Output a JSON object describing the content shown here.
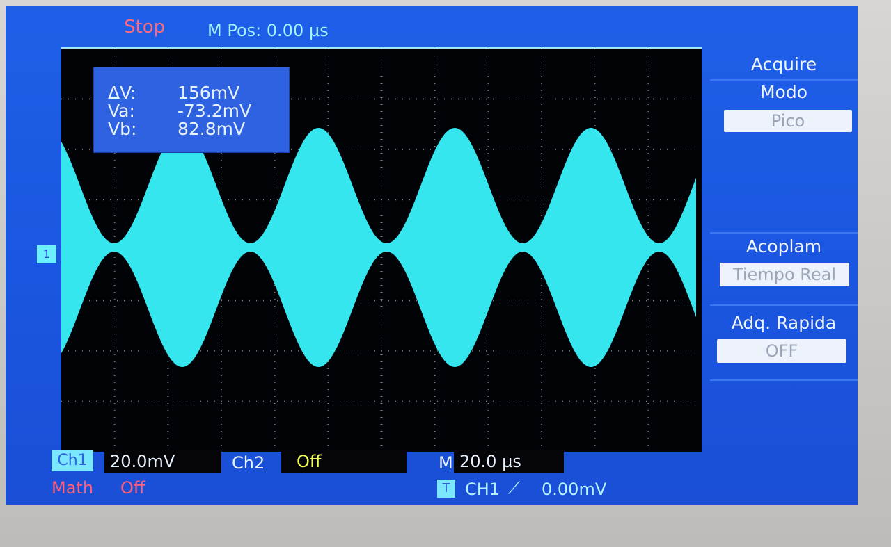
{
  "top_bar": {
    "status": "Stop",
    "m_pos": "M Pos: 0.00 µs"
  },
  "cursor_readout": {
    "delta_v_label": "ΔV:",
    "delta_v_value": "156mV",
    "va_label": "Va:",
    "va_value": "-73.2mV",
    "vb_label": "Vb:",
    "vb_value": "82.8mV"
  },
  "channel_marker": "1",
  "side_menu": {
    "header": "Acquire",
    "mode_label": "Modo",
    "mode_value": "Pico",
    "coupling_label": "Acoplam",
    "coupling_value": "Tiempo Real",
    "fast_acq_label": "Adq. Rapida",
    "fast_acq_value": "OFF"
  },
  "bottom_bar": {
    "ch1_tag": "Ch1",
    "ch1_scale": "20.0mV",
    "ch2_label": "Ch2",
    "ch2_state": "Off",
    "m_label": "M",
    "timebase": "20.0 µs",
    "math_label": "Math",
    "math_state": "Off",
    "trigger_icon": "T",
    "trigger_source": "CH1",
    "trigger_slope_icon": "rising-edge-icon",
    "trigger_level": "0.00mV"
  },
  "colors": {
    "screen_bg": "#1a55e0",
    "trace": "#35e6ef",
    "grid_bg": "#020306",
    "stop_text": "#ff6a7a",
    "ch2_off": "#f4ff55"
  }
}
